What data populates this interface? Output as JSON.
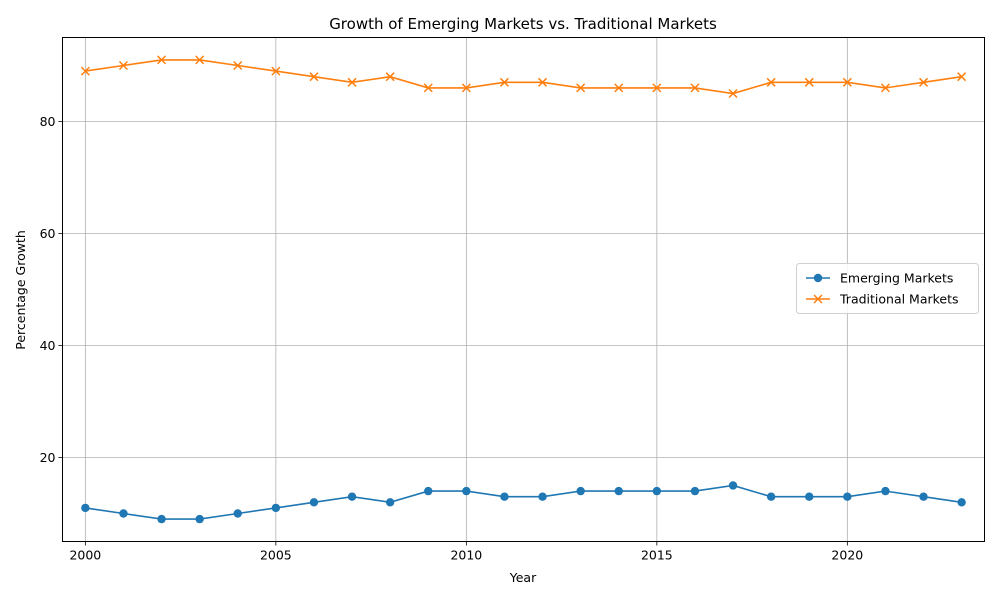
{
  "chart_data": {
    "type": "line",
    "title": "Growth of Emerging Markets vs. Traditional Markets",
    "xlabel": "Year",
    "ylabel": "Percentage Growth",
    "xlim": [
      1999.4,
      2023.6
    ],
    "ylim": [
      5,
      95
    ],
    "xticks": [
      2000,
      2005,
      2010,
      2015,
      2020
    ],
    "yticks": [
      20,
      40,
      60,
      80
    ],
    "grid": true,
    "legend_position": "center-right",
    "x": [
      2000,
      2001,
      2002,
      2003,
      2004,
      2005,
      2006,
      2007,
      2008,
      2009,
      2010,
      2011,
      2012,
      2013,
      2014,
      2015,
      2016,
      2017,
      2018,
      2019,
      2020,
      2021,
      2022,
      2023
    ],
    "series": [
      {
        "name": "Emerging Markets",
        "color": "#1f77b4",
        "marker": "circle",
        "values": [
          11,
          10,
          9,
          9,
          10,
          11,
          12,
          13,
          12,
          14,
          14,
          13,
          13,
          14,
          14,
          14,
          14,
          15,
          13,
          13,
          13,
          14,
          13,
          12
        ]
      },
      {
        "name": "Traditional Markets",
        "color": "#ff7f0e",
        "marker": "x",
        "values": [
          89,
          90,
          91,
          91,
          90,
          89,
          88,
          87,
          88,
          86,
          86,
          87,
          87,
          86,
          86,
          86,
          86,
          85,
          87,
          87,
          87,
          86,
          87,
          88
        ]
      }
    ]
  }
}
